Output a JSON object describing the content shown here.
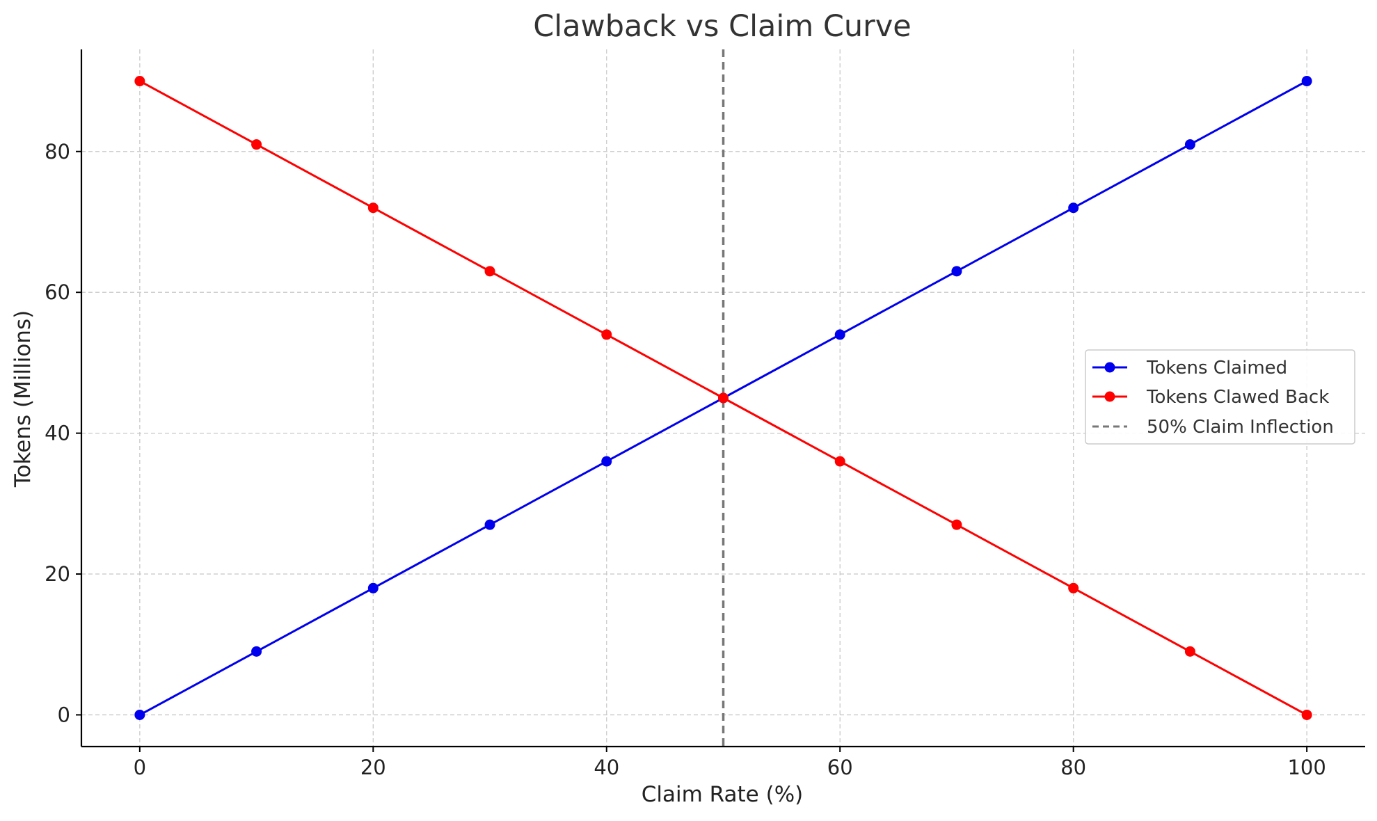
{
  "chart_data": {
    "type": "line",
    "title": "Clawback vs Claim Curve",
    "xlabel": "Claim Rate (%)",
    "ylabel": "Tokens (Millions)",
    "xlim": [
      -5,
      105
    ],
    "ylim": [
      -4.5,
      94.5
    ],
    "xticks": [
      0,
      20,
      40,
      60,
      80,
      100
    ],
    "yticks": [
      0,
      20,
      40,
      60,
      80
    ],
    "grid": true,
    "legend_position": "center-right",
    "x": [
      0,
      10,
      20,
      30,
      40,
      50,
      60,
      70,
      80,
      90,
      100
    ],
    "series": [
      {
        "name": "Tokens Claimed",
        "color": "#0000ee",
        "marker": "circle",
        "values": [
          0,
          9,
          18,
          27,
          36,
          45,
          54,
          63,
          72,
          81,
          90
        ]
      },
      {
        "name": "Tokens Clawed Back",
        "color": "#ff0000",
        "marker": "circle",
        "values": [
          90,
          81,
          72,
          63,
          54,
          45,
          36,
          27,
          18,
          9,
          0
        ]
      }
    ],
    "vline": {
      "name": "50% Claim Inflection",
      "x": 50,
      "color": "#777777",
      "style": "dashed"
    }
  }
}
